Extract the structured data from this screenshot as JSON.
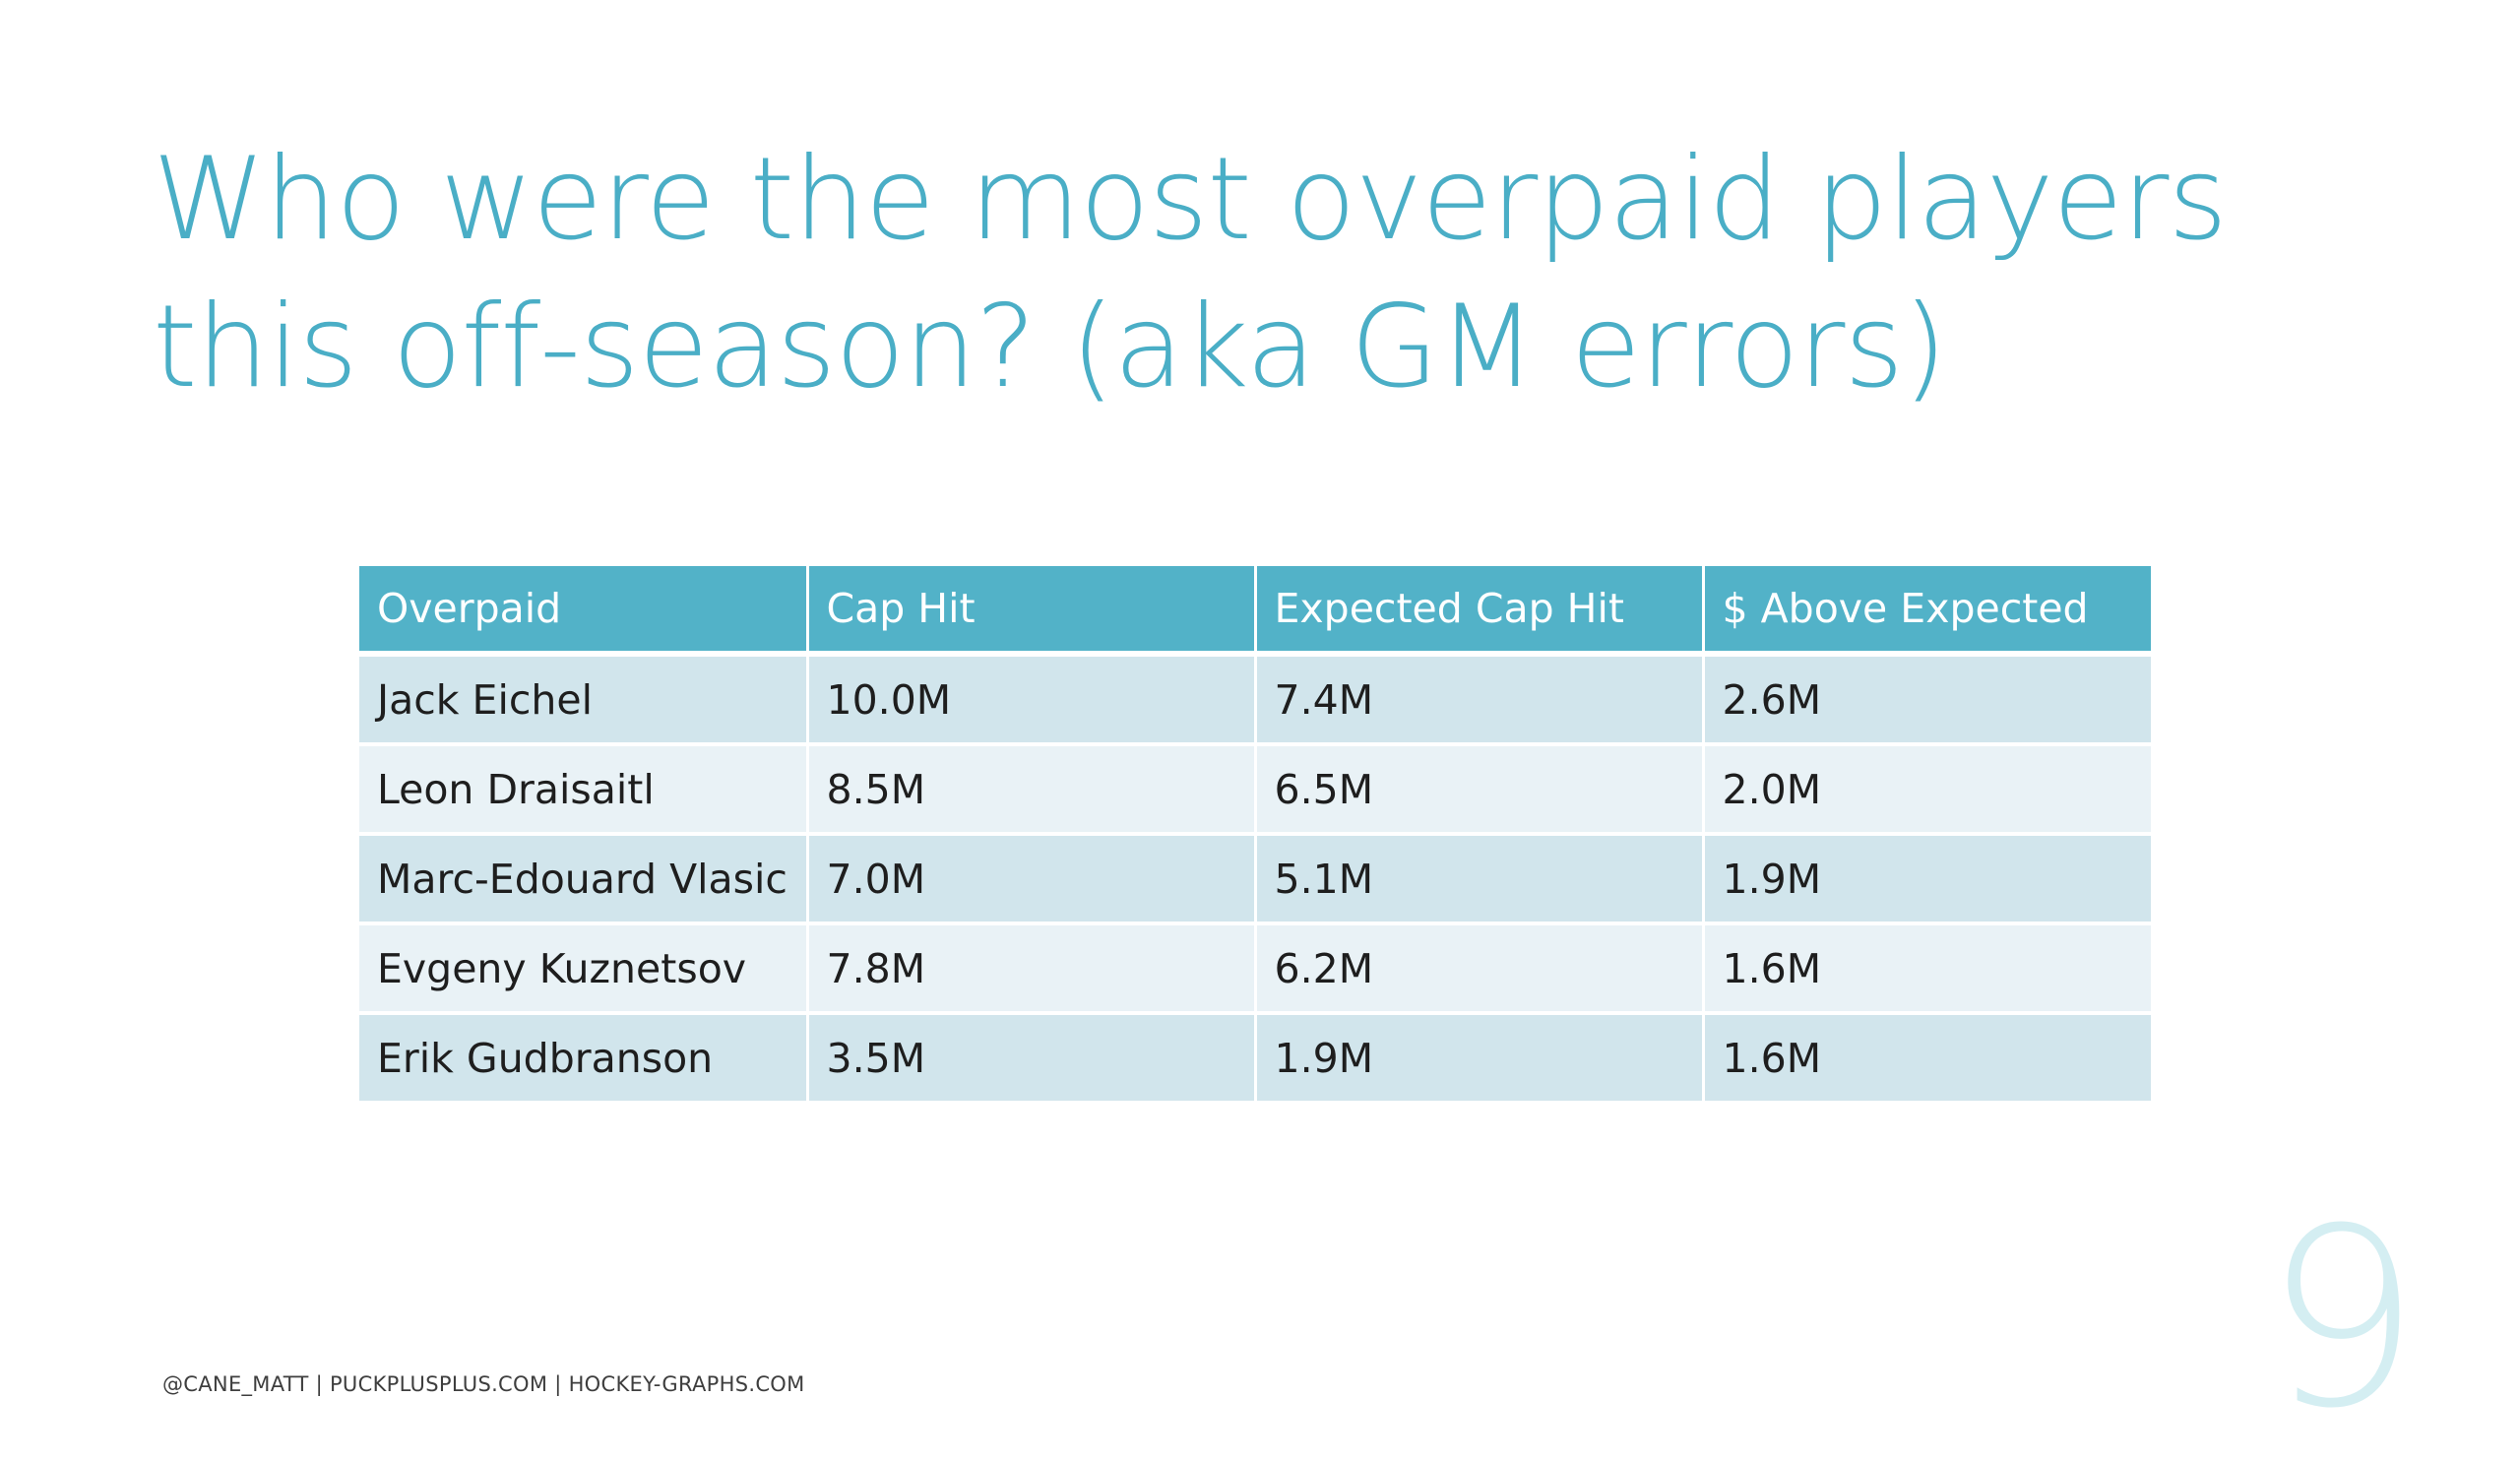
{
  "slide": {
    "title_line1": "Who were the most overpaid players",
    "title_line2": "this off-season? (aka GM errors)",
    "table": {
      "headers": [
        "Overpaid",
        "Cap Hit",
        "Expected Cap Hit",
        "$ Above Expected"
      ],
      "rows": [
        [
          "Jack Eichel",
          "10.0M",
          "7.4M",
          "2.6M"
        ],
        [
          "Leon Draisaitl",
          "8.5M",
          "6.5M",
          "2.0M"
        ],
        [
          "Marc-Edouard Vlasic",
          "7.0M",
          "5.1M",
          "1.9M"
        ],
        [
          "Evgeny Kuznetsov",
          "7.8M",
          "6.2M",
          "1.6M"
        ],
        [
          "Erik Gudbranson",
          "3.5M",
          "1.9M",
          "1.6M"
        ]
      ]
    },
    "footer": "@CANE_MATT | PUCKPLUSPLUS.COM | HOCKEY-GRAPHS.COM",
    "page_number": "9"
  },
  "colors": {
    "accent": "#4aaec6",
    "header_bg": "#52b2c8",
    "row_odd": "#d1e5ec",
    "row_even": "#e9f2f6",
    "page_number": "#d4eef2"
  }
}
